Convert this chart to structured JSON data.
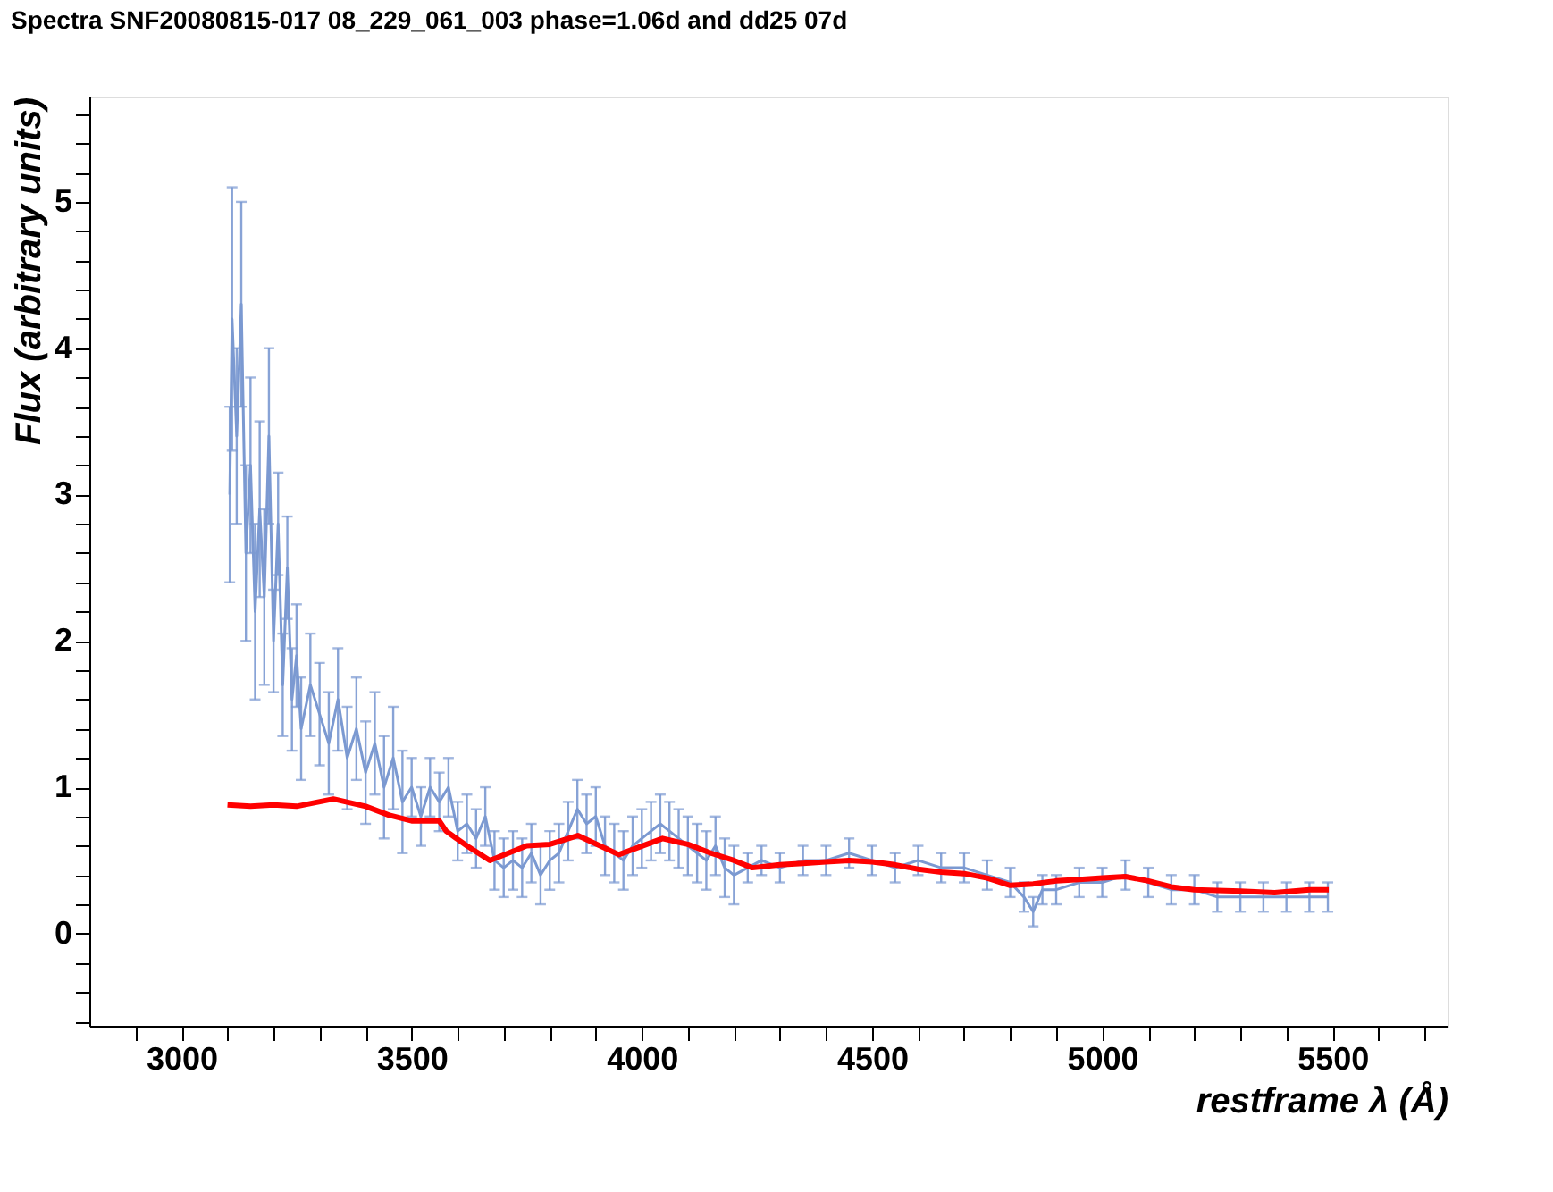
{
  "chart_data": {
    "type": "line",
    "title": "Spectra SNF20080815-017 08_229_061_003 phase=1.06d and dd25 07d",
    "xlabel": "restframe λ (Å)",
    "ylabel": "Flux (arbitrary units)",
    "x": [
      3105,
      3110,
      3120,
      3130,
      3140,
      3150,
      3160,
      3170,
      3180,
      3190,
      3200,
      3210,
      3220,
      3230,
      3240,
      3250,
      3260,
      3280,
      3300,
      3320,
      3340,
      3360,
      3380,
      3400,
      3420,
      3440,
      3460,
      3480,
      3500,
      3520,
      3540,
      3560,
      3580,
      3600,
      3620,
      3640,
      3660,
      3680,
      3700,
      3720,
      3740,
      3760,
      3780,
      3800,
      3820,
      3840,
      3860,
      3880,
      3900,
      3920,
      3940,
      3960,
      3980,
      4000,
      4020,
      4040,
      4060,
      4080,
      4100,
      4120,
      4140,
      4160,
      4180,
      4200,
      4230,
      4260,
      4300,
      4350,
      4400,
      4450,
      4500,
      4550,
      4600,
      4650,
      4700,
      4750,
      4800,
      4830,
      4850,
      4870,
      4900,
      4950,
      5000,
      5050,
      5100,
      5150,
      5200,
      5250,
      5300,
      5350,
      5400,
      5450,
      5490
    ],
    "series": [
      {
        "color": "#7b99d1",
        "values": [
          3.0,
          4.2,
          3.4,
          4.3,
          2.6,
          3.2,
          2.2,
          2.9,
          2.3,
          3.4,
          2.0,
          2.8,
          1.7,
          2.5,
          1.6,
          1.9,
          1.4,
          1.7,
          1.5,
          1.3,
          1.6,
          1.2,
          1.4,
          1.1,
          1.3,
          1.0,
          1.2,
          0.9,
          1.0,
          0.8,
          1.0,
          0.9,
          1.0,
          0.7,
          0.75,
          0.65,
          0.8,
          0.5,
          0.45,
          0.5,
          0.45,
          0.55,
          0.4,
          0.5,
          0.55,
          0.7,
          0.85,
          0.75,
          0.8,
          0.6,
          0.55,
          0.5,
          0.6,
          0.65,
          0.7,
          0.75,
          0.7,
          0.65,
          0.6,
          0.55,
          0.5,
          0.6,
          0.45,
          0.4,
          0.45,
          0.5,
          0.45,
          0.5,
          0.5,
          0.55,
          0.5,
          0.45,
          0.5,
          0.45,
          0.45,
          0.4,
          0.35,
          0.25,
          0.15,
          0.3,
          0.3,
          0.35,
          0.35,
          0.4,
          0.35,
          0.3,
          0.3,
          0.25,
          0.25,
          0.25,
          0.25,
          0.25,
          0.25
        ],
        "errors": [
          0.6,
          0.9,
          0.6,
          0.7,
          0.6,
          0.6,
          0.6,
          0.6,
          0.6,
          0.6,
          0.35,
          0.35,
          0.35,
          0.35,
          0.35,
          0.35,
          0.35,
          0.35,
          0.35,
          0.35,
          0.35,
          0.35,
          0.35,
          0.35,
          0.35,
          0.35,
          0.35,
          0.35,
          0.2,
          0.2,
          0.2,
          0.2,
          0.2,
          0.2,
          0.2,
          0.2,
          0.2,
          0.2,
          0.2,
          0.2,
          0.2,
          0.2,
          0.2,
          0.2,
          0.2,
          0.2,
          0.2,
          0.2,
          0.2,
          0.2,
          0.2,
          0.2,
          0.2,
          0.2,
          0.2,
          0.2,
          0.2,
          0.2,
          0.2,
          0.2,
          0.2,
          0.2,
          0.2,
          0.2,
          0.1,
          0.1,
          0.1,
          0.1,
          0.1,
          0.1,
          0.1,
          0.1,
          0.1,
          0.1,
          0.1,
          0.1,
          0.1,
          0.1,
          0.1,
          0.1,
          0.1,
          0.1,
          0.1,
          0.1,
          0.1,
          0.1,
          0.1,
          0.1,
          0.1,
          0.1,
          0.1,
          0.1,
          0.1
        ]
      },
      {
        "color": "#ff0000",
        "x": [
          3100,
          3150,
          3200,
          3250,
          3330,
          3400,
          3450,
          3500,
          3560,
          3575,
          3620,
          3670,
          3750,
          3800,
          3861,
          3950,
          4045,
          4100,
          4150,
          4200,
          4240,
          4300,
          4350,
          4400,
          4450,
          4500,
          4550,
          4600,
          4650,
          4700,
          4750,
          4800,
          4850,
          4900,
          4950,
          5000,
          5050,
          5100,
          5150,
          5200,
          5300,
          5374,
          5450,
          5492
        ],
        "values": [
          0.88,
          0.87,
          0.88,
          0.87,
          0.92,
          0.87,
          0.81,
          0.77,
          0.77,
          0.7,
          0.6,
          0.5,
          0.6,
          0.61,
          0.67,
          0.54,
          0.65,
          0.61,
          0.55,
          0.5,
          0.45,
          0.47,
          0.48,
          0.49,
          0.5,
          0.49,
          0.47,
          0.44,
          0.42,
          0.41,
          0.38,
          0.33,
          0.34,
          0.36,
          0.37,
          0.38,
          0.39,
          0.36,
          0.32,
          0.3,
          0.29,
          0.28,
          0.3,
          0.3
        ]
      }
    ],
    "xlim": [
      2800,
      5750
    ],
    "ylim": [
      -0.63,
      5.72
    ],
    "xticks": [
      {
        "value": 2900,
        "label": null
      },
      3000,
      {
        "value": 3100,
        "label": null
      },
      {
        "value": 3200,
        "label": null
      },
      {
        "value": 3300,
        "label": null
      },
      {
        "value": 3400,
        "label": null
      },
      3500,
      {
        "value": 3600,
        "label": null
      },
      {
        "value": 3700,
        "label": null
      },
      {
        "value": 3800,
        "label": null
      },
      {
        "value": 3900,
        "label": null
      },
      4000,
      {
        "value": 4100,
        "label": null
      },
      {
        "value": 4200,
        "label": null
      },
      {
        "value": 4300,
        "label": null
      },
      {
        "value": 4400,
        "label": null
      },
      4500,
      {
        "value": 4600,
        "label": null
      },
      {
        "value": 4700,
        "label": null
      },
      {
        "value": 4800,
        "label": null
      },
      {
        "value": 4900,
        "label": null
      },
      5000,
      {
        "value": 5100,
        "label": null
      },
      {
        "value": 5200,
        "label": null
      },
      {
        "value": 5300,
        "label": null
      },
      {
        "value": 5400,
        "label": null
      },
      5500,
      {
        "value": 5600,
        "label": null
      },
      {
        "value": 5700,
        "label": null
      }
    ],
    "yticks": [
      {
        "value": -0.6,
        "label": null
      },
      {
        "value": -0.4,
        "label": null
      },
      {
        "value": -0.2,
        "label": null
      },
      0,
      {
        "value": 0.2,
        "label": null
      },
      {
        "value": 0.4,
        "label": null
      },
      {
        "value": 0.6,
        "label": null
      },
      {
        "value": 0.8,
        "label": null
      },
      1,
      {
        "value": 1.2,
        "label": null
      },
      {
        "value": 1.4,
        "label": null
      },
      {
        "value": 1.6,
        "label": null
      },
      {
        "value": 1.8,
        "label": null
      },
      2,
      {
        "value": 2.2,
        "label": null
      },
      {
        "value": 2.4,
        "label": null
      },
      {
        "value": 2.6,
        "label": null
      },
      {
        "value": 2.8,
        "label": null
      },
      3,
      {
        "value": 3.2,
        "label": null
      },
      {
        "value": 3.4,
        "label": null
      },
      {
        "value": 3.6,
        "label": null
      },
      {
        "value": 3.8,
        "label": null
      },
      4,
      {
        "value": 4.2,
        "label": null
      },
      {
        "value": 4.4,
        "label": null
      },
      {
        "value": 4.6,
        "label": null
      },
      {
        "value": 4.8,
        "label": null
      },
      5,
      {
        "value": 5.2,
        "label": null
      },
      {
        "value": 5.4,
        "label": null
      },
      {
        "value": 5.6,
        "label": null
      }
    ],
    "grid": false,
    "marker": "none",
    "line_style": "solid"
  }
}
